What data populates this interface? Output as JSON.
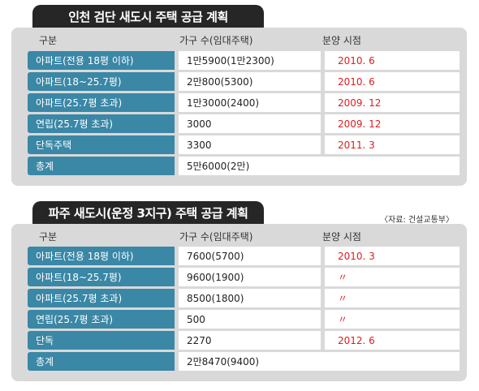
{
  "table1": {
    "title": "인천 검단 새도시 주택 공급 계획",
    "headers": [
      "구분",
      "가구 수(임대주택)",
      "분양 시점"
    ],
    "rows": [
      {
        "label": "아파트(전용 18평 이하)",
        "count": "1만5900(1만2300)",
        "date": "2010. 6"
      },
      {
        "label": "아파트(18~25.7평)",
        "count": "2만800(5300)",
        "date": "2010. 6"
      },
      {
        "label": "아파트(25.7평 초과)",
        "count": "1만3000(2400)",
        "date": "2009. 12"
      },
      {
        "label": "연립(25.7평 초과)",
        "count": "3000",
        "date": "2009. 12"
      },
      {
        "label": "단독주택",
        "count": "3300",
        "date": "2011. 3"
      }
    ],
    "total": {
      "label": "총계",
      "count": "5만6000(2만)"
    }
  },
  "table2": {
    "title": "파주 새도시(운정 3지구) 주택 공급 계획",
    "source": "〈자료: 건설교통부〉",
    "headers": [
      "구분",
      "가구 수(임대주택)",
      "분양 시점"
    ],
    "rows": [
      {
        "label": "아파트(전용 18평 이하)",
        "count": "7600(5700)",
        "date": "2010. 3"
      },
      {
        "label": "아파트(18~25.7평)",
        "count": "9600(1900)",
        "date": "〃"
      },
      {
        "label": "아파트(25.7평 초과)",
        "count": "8500(1800)",
        "date": "〃"
      },
      {
        "label": "연립(25.7평 초과)",
        "count": "500",
        "date": "〃"
      },
      {
        "label": "단독",
        "count": "2270",
        "date": "2012. 6"
      }
    ],
    "total": {
      "label": "총계",
      "count": "2만8470(9400)"
    }
  },
  "colors": {
    "title_bg": "#262626",
    "panel_bg": "#d9d9d9",
    "label_bg": "#3a87a6",
    "date_text": "#e01c1c"
  }
}
